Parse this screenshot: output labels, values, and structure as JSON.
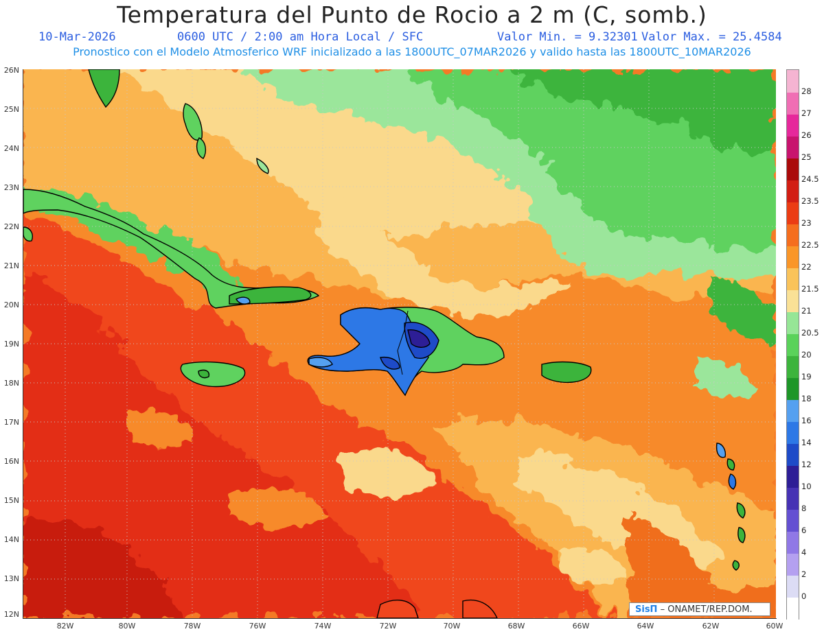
{
  "header": {
    "title": "Temperatura del Punto de Rocio a 2 m (C, somb.)",
    "date": "10-Mar-2026",
    "time": "0600 UTC / 2:00 am Hora Local / SFC",
    "min_label": "Valor Min. = 9.32301",
    "max_label": "Valor Max. = 25.4584",
    "model_info": "Pronostico con el Modelo Atmosferico WRF inicializado a las 1800UTC_07MAR2026 y valido hasta las  1800UTC_10MAR2026"
  },
  "axes": {
    "lat_labels": [
      "26N",
      "25N",
      "24N",
      "23N",
      "22N",
      "21N",
      "20N",
      "19N",
      "18N",
      "17N",
      "16N",
      "15N",
      "14N",
      "13N",
      "12N"
    ],
    "lon_labels": [
      "82W",
      "80W",
      "78W",
      "76W",
      "74W",
      "72W",
      "70W",
      "68W",
      "66W",
      "64W",
      "62W",
      "60W"
    ]
  },
  "colorbar": {
    "levels": [
      "0",
      "2",
      "4",
      "6",
      "8",
      "10",
      "12",
      "14",
      "16",
      "18",
      "19",
      "20",
      "20.5",
      "21",
      "21.5",
      "22",
      "22.5",
      "23",
      "23.5",
      "24.5",
      "25",
      "26",
      "27",
      "28"
    ],
    "colors": [
      "#ffffff",
      "#dcdcf5",
      "#b4a0f0",
      "#9078e6",
      "#6450d2",
      "#4632b4",
      "#2d1e96",
      "#1e4bc8",
      "#2d78e6",
      "#55a0f0",
      "#1e9628",
      "#3cb43c",
      "#5ad25a",
      "#96e696",
      "#fae196",
      "#fac35a",
      "#fa9628",
      "#f56e1e",
      "#eb3c14",
      "#d21e14",
      "#aa0a0a",
      "#c8146e",
      "#e6289b",
      "#f06eb4",
      "#f5b4d2"
    ]
  },
  "credit": {
    "logo_text": "SisΠ",
    "text": "– ONAMET/REP.DOM."
  },
  "icons": {
    "logo": "sispi-logo"
  }
}
